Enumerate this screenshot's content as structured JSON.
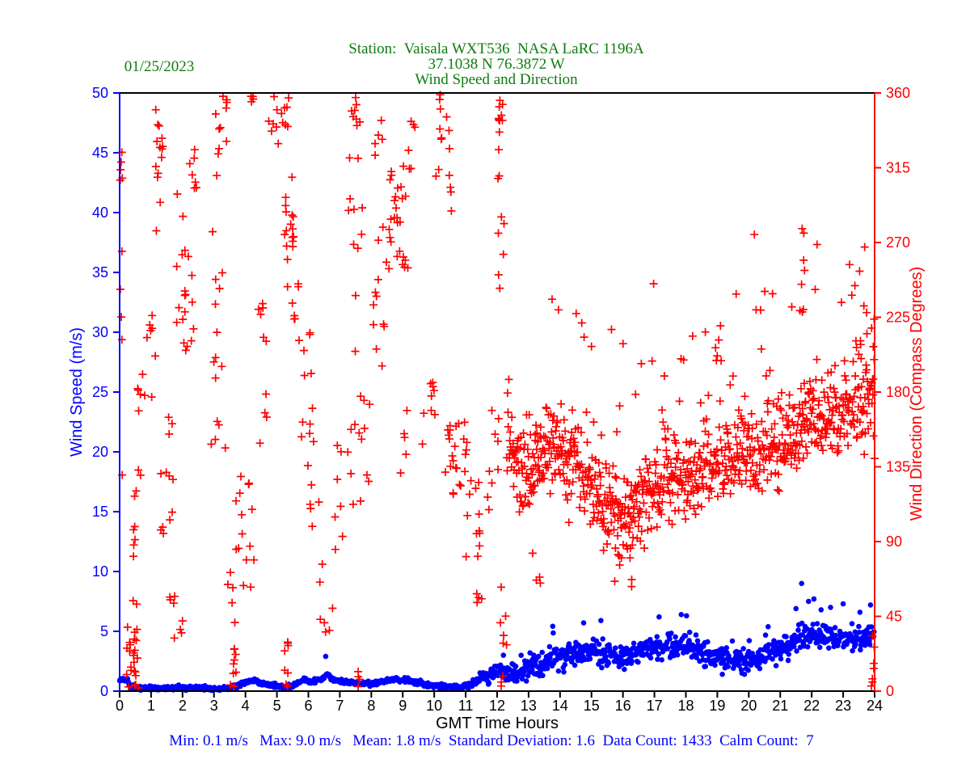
{
  "header": {
    "date": "01/25/2023",
    "line1": "Station:  Vaisala WXT536  NASA LaRC 1196A",
    "line2": "37.1038 N 76.3872 W",
    "line3": "Wind Speed and Direction",
    "color": "#0e7c0e"
  },
  "footer": {
    "stats": "Min: 0.1 m/s   Max: 9.0 m/s   Mean: 1.8 m/s  Standard Deviation: 1.6  Data Count: 1433  Calm Count:  7",
    "color": "#0000ff"
  },
  "axes": {
    "x": {
      "label": "GMT Time Hours",
      "min": 0,
      "max": 24,
      "ticks": [
        0,
        1,
        2,
        3,
        4,
        5,
        6,
        7,
        8,
        9,
        10,
        11,
        12,
        13,
        14,
        15,
        16,
        17,
        18,
        19,
        20,
        21,
        22,
        23,
        24
      ],
      "color": "#000000"
    },
    "y_left": {
      "label": "Wind Speed (m/s)",
      "min": 0,
      "max": 50,
      "ticks": [
        0,
        5,
        10,
        15,
        20,
        25,
        30,
        35,
        40,
        45,
        50
      ],
      "color": "#0000ff"
    },
    "y_right": {
      "label": "Wind Direction (Compass Degrees)",
      "min": 0,
      "max": 360,
      "ticks": [
        0,
        45,
        90,
        135,
        180,
        225,
        270,
        315,
        360
      ],
      "color": "#ff0000"
    }
  },
  "chart_data": {
    "type": "scatter",
    "title": "Wind Speed and Direction",
    "xlabel": "GMT Time Hours",
    "x_range": [
      0,
      24
    ],
    "left_y_range": [
      0,
      50
    ],
    "right_y_range": [
      0,
      360
    ],
    "grid": false,
    "legend": "none",
    "stats": {
      "min_ms": 0.1,
      "max_ms": 9.0,
      "mean_ms": 1.8,
      "std_dev": 1.6,
      "data_count": 1433,
      "calm_count": 7
    },
    "render_seed": 20230125,
    "series": [
      {
        "name": "wind_speed",
        "axis": "left",
        "units": "m/s",
        "marker": "dot",
        "color": "#0000ff",
        "count": 1433,
        "mean_profile": [
          [
            0,
            0.9
          ],
          [
            0.2,
            1.0
          ],
          [
            0.35,
            0.4
          ],
          [
            0.6,
            0.3
          ],
          [
            1,
            0.25
          ],
          [
            1.5,
            0.3
          ],
          [
            2,
            0.25
          ],
          [
            2.5,
            0.3
          ],
          [
            3,
            0.2
          ],
          [
            3.4,
            0.2
          ],
          [
            3.7,
            0.4
          ],
          [
            4,
            0.8
          ],
          [
            4.3,
            0.9
          ],
          [
            4.6,
            0.6
          ],
          [
            5,
            0.4
          ],
          [
            5.3,
            0.3
          ],
          [
            5.6,
            0.6
          ],
          [
            5.9,
            1.0
          ],
          [
            6.1,
            0.7
          ],
          [
            6.4,
            1.0
          ],
          [
            6.6,
            1.5
          ],
          [
            6.8,
            0.9
          ],
          [
            7.2,
            0.8
          ],
          [
            7.6,
            0.6
          ],
          [
            8,
            0.6
          ],
          [
            8.4,
            0.8
          ],
          [
            8.8,
            1.0
          ],
          [
            9.2,
            0.9
          ],
          [
            9.6,
            0.6
          ],
          [
            10,
            0.5
          ],
          [
            10.4,
            0.35
          ],
          [
            10.8,
            0.35
          ],
          [
            11.2,
            0.6
          ],
          [
            11.6,
            1.1
          ],
          [
            11.9,
            1.7
          ],
          [
            12.1,
            1.4
          ],
          [
            12.4,
            1.3
          ],
          [
            12.8,
            1.7
          ],
          [
            13.2,
            2.1
          ],
          [
            13.6,
            2.5
          ],
          [
            14,
            2.9
          ],
          [
            14.4,
            3.1
          ],
          [
            14.8,
            3.3
          ],
          [
            15.2,
            3.4
          ],
          [
            15.6,
            3.1
          ],
          [
            16,
            2.8
          ],
          [
            16.4,
            3.0
          ],
          [
            16.8,
            3.5
          ],
          [
            17.2,
            3.8
          ],
          [
            17.6,
            3.6
          ],
          [
            18,
            3.9
          ],
          [
            18.4,
            3.5
          ],
          [
            18.8,
            3.1
          ],
          [
            19.2,
            2.8
          ],
          [
            19.6,
            2.5
          ],
          [
            20,
            2.4
          ],
          [
            20.4,
            2.8
          ],
          [
            20.8,
            3.3
          ],
          [
            21.2,
            3.7
          ],
          [
            21.6,
            4.3
          ],
          [
            22,
            4.7
          ],
          [
            22.4,
            4.5
          ],
          [
            22.8,
            4.4
          ],
          [
            23.2,
            4.3
          ],
          [
            23.6,
            4.4
          ],
          [
            24,
            4.6
          ]
        ],
        "noise_sigma_low": 0.09,
        "noise_sigma_high": 0.5,
        "sigma_ramp_hours": [
          11,
          12.5
        ],
        "spike_points": [
          [
            6.55,
            2.9
          ],
          [
            12.2,
            3.0
          ],
          [
            14.75,
            5.7
          ],
          [
            15.3,
            5.9
          ],
          [
            17.15,
            6.2
          ],
          [
            18.02,
            6.3
          ],
          [
            21.5,
            6.9
          ],
          [
            21.68,
            9.0
          ],
          [
            21.9,
            7.5
          ],
          [
            22.07,
            7.7
          ],
          [
            22.3,
            6.8
          ],
          [
            22.6,
            7.0
          ],
          [
            23.0,
            7.3
          ],
          [
            23.87,
            7.2
          ]
        ]
      },
      {
        "name": "wind_direction",
        "axis": "right",
        "units": "compass degrees",
        "marker": "plus",
        "color": "#ff0000",
        "count": 1433,
        "clusters": [
          [
            0.4,
            0.22,
            20,
            19,
            24
          ],
          [
            0.05,
            0.05,
            240,
            115,
            10
          ],
          [
            0.45,
            0.12,
            75,
            30,
            7
          ],
          [
            0.65,
            0.2,
            150,
            35,
            8
          ],
          [
            0.9,
            0.25,
            200,
            28,
            9
          ],
          [
            1.25,
            0.12,
            315,
            42,
            14
          ],
          [
            1.5,
            0.2,
            120,
            45,
            12
          ],
          [
            1.7,
            0.35,
            40,
            25,
            8
          ],
          [
            2.05,
            0.25,
            262,
            58,
            15
          ],
          [
            2.45,
            0.15,
            328,
            27,
            6
          ],
          [
            2.2,
            0.2,
            225,
            20,
            6
          ],
          [
            3.15,
            0.25,
            250,
            105,
            22
          ],
          [
            3.35,
            0.15,
            352,
            7,
            5
          ],
          [
            3.6,
            0.1,
            15,
            14,
            9
          ],
          [
            3.55,
            0.15,
            55,
            18,
            5
          ],
          [
            4.0,
            0.3,
            95,
            35,
            15
          ],
          [
            4.2,
            0.08,
            352,
            7,
            4
          ],
          [
            4.55,
            0.15,
            200,
            55,
            10
          ],
          [
            4.85,
            0.2,
            342,
            16,
            7
          ],
          [
            5.25,
            0.15,
            348,
            11,
            7
          ],
          [
            5.35,
            0.2,
            293,
            26,
            15
          ],
          [
            5.5,
            0.2,
            243,
            20,
            8
          ],
          [
            5.3,
            0.07,
            18,
            17,
            8
          ],
          [
            5.9,
            0.25,
            185,
            35,
            11
          ],
          [
            6.15,
            0.2,
            125,
            30,
            7
          ],
          [
            6.6,
            0.25,
            55,
            25,
            7
          ],
          [
            7.0,
            0.2,
            120,
            38,
            7
          ],
          [
            7.5,
            0.25,
            230,
            122,
            24
          ],
          [
            7.5,
            0.1,
            350,
            8,
            4
          ],
          [
            7.6,
            0.05,
            7,
            6,
            4
          ],
          [
            7.8,
            0.15,
            150,
            28,
            5
          ],
          [
            8.3,
            0.25,
            235,
            45,
            12
          ],
          [
            8.25,
            0.15,
            333,
            14,
            5
          ],
          [
            8.9,
            0.35,
            283,
            30,
            26
          ],
          [
            9.2,
            0.2,
            330,
            18,
            7
          ],
          [
            9.0,
            0.15,
            150,
            38,
            5
          ],
          [
            9.8,
            0.3,
            168,
            25,
            9
          ],
          [
            10.3,
            0.25,
            322,
            38,
            12
          ],
          [
            10.2,
            0.06,
            354,
            5,
            3
          ],
          [
            10.7,
            0.35,
            140,
            22,
            24
          ],
          [
            11.2,
            0.25,
            105,
            25,
            12
          ],
          [
            11.45,
            0.1,
            52,
            12,
            4
          ],
          [
            11.85,
            0.2,
            138,
            35,
            9
          ],
          [
            12.12,
            0.1,
            300,
            58,
            13
          ],
          [
            12.1,
            0.07,
            350,
            7,
            5
          ],
          [
            12.2,
            0.1,
            50,
            25,
            6
          ],
          [
            12.15,
            0.05,
            6,
            5,
            3
          ],
          [
            16.0,
            0.35,
            75,
            14,
            8
          ],
          [
            13.3,
            0.2,
            75,
            12,
            4
          ],
          [
            21.7,
            0.1,
            255,
            27,
            8
          ],
          [
            23.7,
            0.3,
            215,
            17,
            8
          ],
          [
            19.0,
            0.1,
            205,
            8,
            3
          ],
          [
            23.95,
            0.08,
            20,
            18,
            5
          ],
          [
            23.9,
            0.05,
            3,
            3,
            2
          ]
        ],
        "band": {
          "hour_range": [
            12.3,
            24
          ],
          "mean_profile": [
            [
              12.3,
              150
            ],
            [
              12.6,
              140
            ],
            [
              13,
              133
            ],
            [
              13.4,
              141
            ],
            [
              13.8,
              148
            ],
            [
              14.2,
              142
            ],
            [
              14.6,
              133
            ],
            [
              15,
              123
            ],
            [
              15.4,
              116
            ],
            [
              15.8,
              106
            ],
            [
              16.2,
              103
            ],
            [
              16.6,
              113
            ],
            [
              17,
              123
            ],
            [
              17.5,
              129
            ],
            [
              18,
              129
            ],
            [
              18.5,
              134
            ],
            [
              19,
              139
            ],
            [
              19.5,
              141
            ],
            [
              20,
              144
            ],
            [
              20.5,
              149
            ],
            [
              21,
              153
            ],
            [
              21.5,
              159
            ],
            [
              22,
              164
            ],
            [
              22.5,
              169
            ],
            [
              23,
              169
            ],
            [
              23.5,
              175
            ],
            [
              24,
              181
            ]
          ],
          "sigma": 14,
          "outlier_prob": 0.05,
          "outlier_add": [
            25,
            105
          ]
        }
      }
    ]
  }
}
